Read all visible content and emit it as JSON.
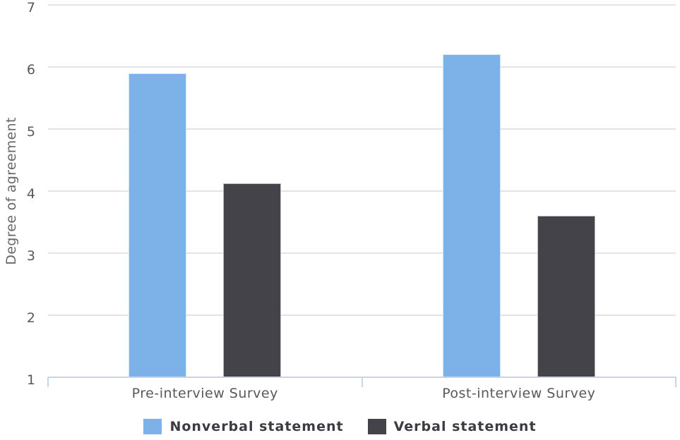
{
  "chart_data": {
    "type": "bar",
    "title": "",
    "categories": [
      "Pre-interview Survey",
      "Post-interview Survey"
    ],
    "series": [
      {
        "name": "Nonverbal statement",
        "color": "#7db2e8",
        "values": [
          5.9,
          6.21
        ]
      },
      {
        "name": "Verbal statement",
        "color": "#434349",
        "values": [
          4.13,
          3.6
        ]
      }
    ],
    "xlabel": "",
    "ylabel": "Degree of agreement",
    "ylim": [
      1,
      7
    ],
    "yticks": [
      7,
      6,
      5,
      4,
      3,
      2,
      1
    ],
    "grid": true,
    "legend_position": "bottom"
  },
  "colors": {
    "background": "#ffffff",
    "gridline": "#e4e4e4",
    "axis_line": "#c7d5e8",
    "tick_label": "#58595b",
    "category_label": "#58595b",
    "y_title": "#66686b",
    "legend_text": "#3b3b41"
  }
}
